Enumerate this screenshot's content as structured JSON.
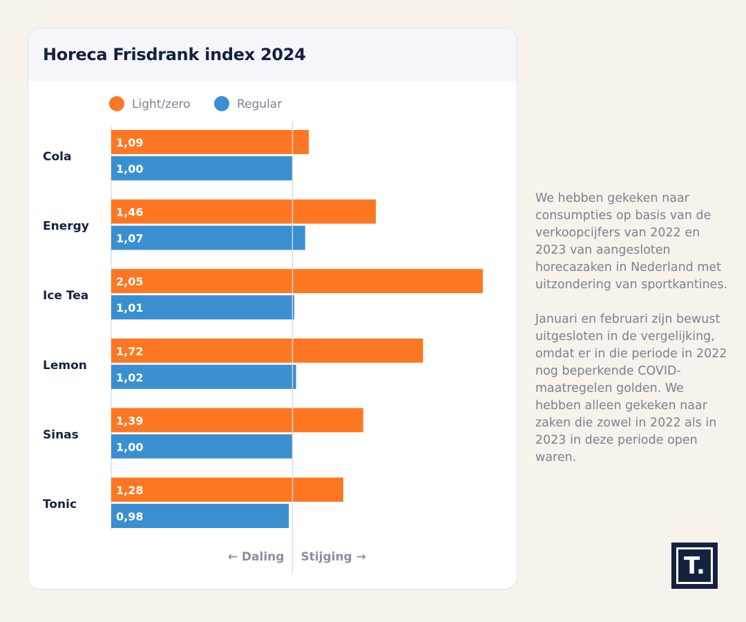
{
  "chart_data": {
    "type": "bar",
    "orientation": "horizontal",
    "title": "Horeca Frisdrank index 2024",
    "categories": [
      "Cola",
      "Energy",
      "Ice Tea",
      "Lemon",
      "Sinas",
      "Tonic"
    ],
    "series": [
      {
        "name": "Light/zero",
        "color": "#fd7722",
        "values": [
          1.09,
          1.46,
          2.05,
          1.72,
          1.39,
          1.28
        ],
        "labels": [
          "1,09",
          "1,46",
          "2,05",
          "1,72",
          "1,39",
          "1,28"
        ]
      },
      {
        "name": "Regular",
        "color": "#3a8fd1",
        "values": [
          1.0,
          1.07,
          1.01,
          1.02,
          1.0,
          0.98
        ],
        "labels": [
          "1,00",
          "1,07",
          "1,01",
          "1,02",
          "1,00",
          "0,98"
        ]
      }
    ],
    "reference_value": 1.0,
    "xlim": [
      0,
      2.05
    ],
    "direction_labels": {
      "down": "← Daling",
      "up": "Stijging →"
    }
  },
  "text": {
    "paragraph_1": "We hebben gekeken naar consumpties op basis van de verkoopcijfers van 2022 en 2023 van aangesloten horecazaken in Nederland met uitzondering van sportkantines.",
    "paragraph_2": "Januari en februari zijn bewust uitgesloten in de vergelijking, omdat er in die periode in 2022 nog beperkende COVID-maatregelen golden. We hebben alleen gekeken naar zaken die zowel in 2022 als in 2023 in deze periode open waren."
  },
  "logo": {
    "letter": "T."
  }
}
